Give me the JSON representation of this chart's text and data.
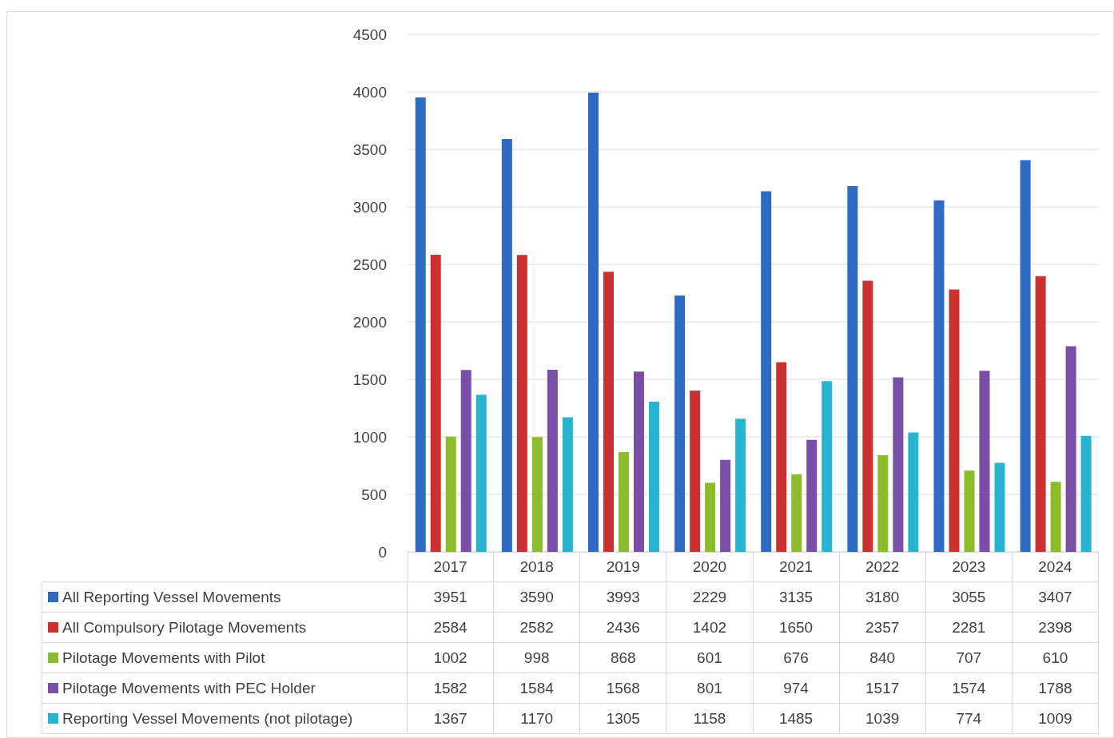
{
  "chart_data": {
    "type": "bar",
    "categories": [
      "2017",
      "2018",
      "2019",
      "2020",
      "2021",
      "2022",
      "2023",
      "2024"
    ],
    "series": [
      {
        "name": "All Reporting Vessel Movements",
        "color": "#2e6bc4",
        "values": [
          3951,
          3590,
          3993,
          2229,
          3135,
          3180,
          3055,
          3407
        ]
      },
      {
        "name": "All Compulsory Pilotage Movements",
        "color": "#cc3131",
        "values": [
          2584,
          2582,
          2436,
          1402,
          1650,
          2357,
          2281,
          2398
        ]
      },
      {
        "name": "Pilotage Movements with Pilot",
        "color": "#8cbb2c",
        "values": [
          1002,
          998,
          868,
          601,
          676,
          840,
          707,
          610
        ]
      },
      {
        "name": "Pilotage Movements with PEC Holder",
        "color": "#7a4ea6",
        "values": [
          1582,
          1584,
          1568,
          801,
          974,
          1517,
          1574,
          1788
        ]
      },
      {
        "name": "Reporting Vessel Movements (not pilotage)",
        "color": "#28b4cf",
        "values": [
          1367,
          1170,
          1305,
          1158,
          1485,
          1039,
          774,
          1009
        ]
      }
    ],
    "ylim": [
      0,
      4500
    ],
    "yticks": [
      0,
      500,
      1000,
      1500,
      2000,
      2500,
      3000,
      3500,
      4000,
      4500
    ],
    "grid": "y",
    "legend": "bottom",
    "data_labels": true
  }
}
